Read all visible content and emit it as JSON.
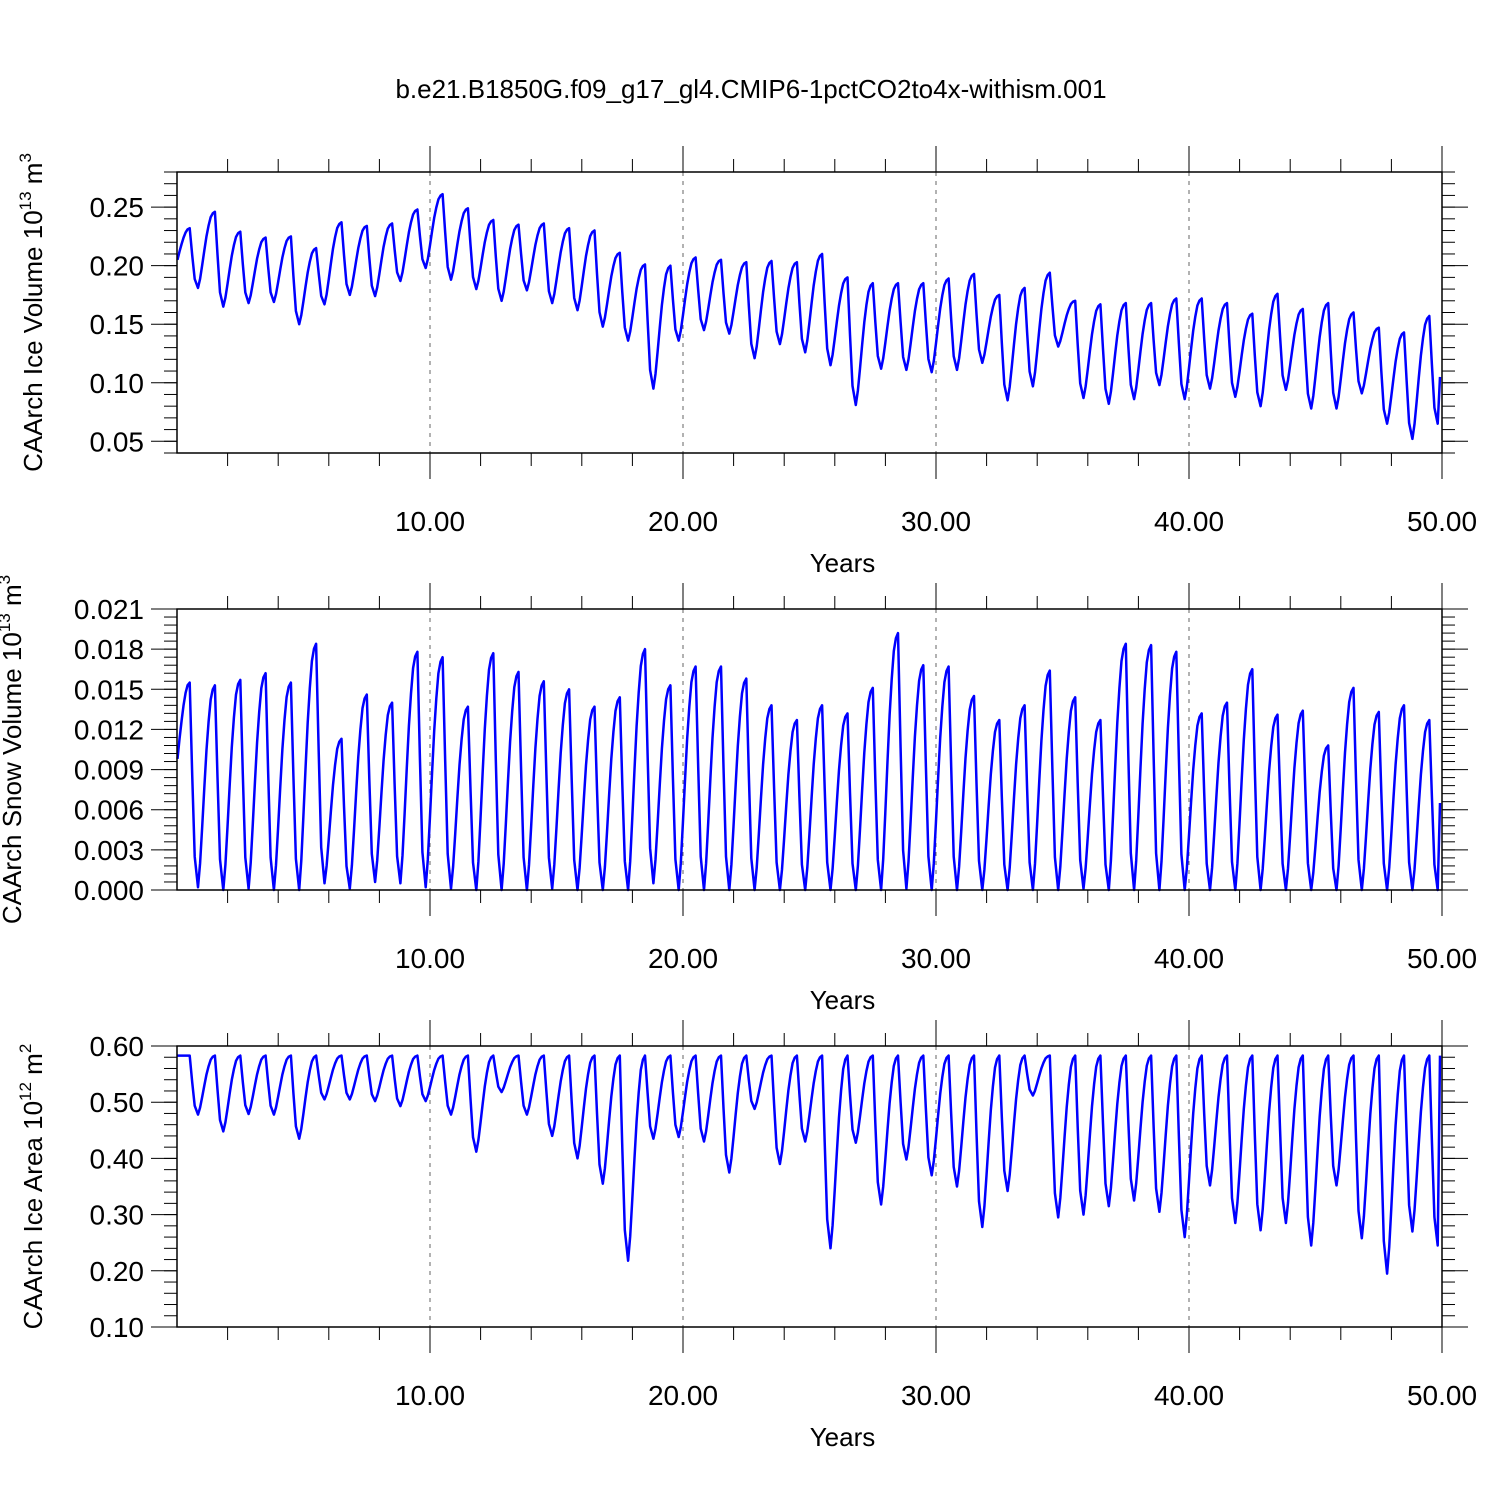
{
  "title": "b.e21.B1850G.f09_g17_gl4.CMIP6-1pctCO2to4x-withism.001",
  "colors": {
    "line": "#0000ff",
    "axis": "#000000",
    "grid": "#666666"
  },
  "chart_data": [
    {
      "type": "line",
      "title": "b.e21.B1850G.f09_g17_gl4.CMIP6-1pctCO2to4x-withism.001",
      "xlabel": "Years",
      "ylabel": "CAArch Ice Volume 10",
      "ylabel_exp": "13",
      "ylabel_unit": " m",
      "ylabel_unit_exp": "3",
      "xlim": [
        0,
        50
      ],
      "ylim": [
        0.04,
        0.28
      ],
      "x_ticks": [
        10,
        20,
        30,
        40,
        50
      ],
      "x_tick_labels": [
        "10.00",
        "20.00",
        "30.00",
        "40.00",
        "50.00"
      ],
      "y_ticks": [
        0.05,
        0.1,
        0.15,
        0.2,
        0.25
      ],
      "y_tick_labels": [
        "0.05",
        "0.10",
        "0.15",
        "0.20",
        "0.25"
      ],
      "grid": "vertical dashed at major x ticks",
      "series": [
        {
          "color": "#0000ff",
          "annual_max": [
            0.232,
            0.246,
            0.229,
            0.224,
            0.225,
            0.215,
            0.237,
            0.234,
            0.236,
            0.248,
            0.261,
            0.249,
            0.239,
            0.235,
            0.236,
            0.232,
            0.23,
            0.211,
            0.201,
            0.2,
            0.207,
            0.205,
            0.203,
            0.204,
            0.203,
            0.21,
            0.19,
            0.185,
            0.185,
            0.185,
            0.189,
            0.193,
            0.175,
            0.181,
            0.194,
            0.17,
            0.167,
            0.168,
            0.168,
            0.172,
            0.172,
            0.168,
            0.159,
            0.176,
            0.163,
            0.168,
            0.16,
            0.147,
            0.143,
            0.157
          ],
          "annual_min": [
            0.181,
            0.165,
            0.168,
            0.169,
            0.15,
            0.167,
            0.175,
            0.174,
            0.187,
            0.198,
            0.188,
            0.18,
            0.17,
            0.179,
            0.168,
            0.162,
            0.148,
            0.136,
            0.095,
            0.136,
            0.145,
            0.142,
            0.121,
            0.133,
            0.126,
            0.115,
            0.081,
            0.112,
            0.111,
            0.109,
            0.111,
            0.117,
            0.085,
            0.097,
            0.131,
            0.087,
            0.082,
            0.086,
            0.098,
            0.086,
            0.095,
            0.088,
            0.08,
            0.094,
            0.078,
            0.078,
            0.091,
            0.065,
            0.052,
            0.065
          ],
          "start": 0.205,
          "end": 0.105
        }
      ]
    },
    {
      "type": "line",
      "xlabel": "Years",
      "ylabel": "CAArch Snow Volume 10",
      "ylabel_exp": "13",
      "ylabel_unit": " m",
      "ylabel_unit_exp": "3",
      "xlim": [
        0,
        50
      ],
      "ylim": [
        0.0,
        0.021
      ],
      "x_ticks": [
        10,
        20,
        30,
        40,
        50
      ],
      "x_tick_labels": [
        "10.00",
        "20.00",
        "30.00",
        "40.00",
        "50.00"
      ],
      "y_ticks": [
        0.0,
        0.003,
        0.006,
        0.009,
        0.012,
        0.015,
        0.018,
        0.021
      ],
      "y_tick_labels": [
        "0.000",
        "0.003",
        "0.006",
        "0.009",
        "0.012",
        "0.015",
        "0.018",
        "0.021"
      ],
      "grid": "vertical dashed at major x ticks",
      "series": [
        {
          "color": "#0000ff",
          "annual_max": [
            0.0155,
            0.0153,
            0.0157,
            0.0162,
            0.0155,
            0.0184,
            0.0113,
            0.0146,
            0.014,
            0.0178,
            0.0174,
            0.0137,
            0.0177,
            0.0163,
            0.0156,
            0.015,
            0.0137,
            0.0144,
            0.018,
            0.0153,
            0.0167,
            0.0167,
            0.0158,
            0.0138,
            0.0127,
            0.0138,
            0.0132,
            0.0151,
            0.0192,
            0.0168,
            0.0167,
            0.0145,
            0.0127,
            0.0138,
            0.0164,
            0.0144,
            0.0127,
            0.0184,
            0.0183,
            0.0178,
            0.0132,
            0.014,
            0.0165,
            0.0131,
            0.0134,
            0.0108,
            0.0151,
            0.0133,
            0.0138,
            0.0127
          ],
          "annual_min": [
            0.0002,
            0.0,
            0.0001,
            0.0,
            0.0,
            0.0005,
            0.0001,
            0.0006,
            0.0005,
            0.0002,
            0.0001,
            0.0,
            0.0,
            0.0,
            0.0001,
            0.0,
            0.0,
            0.0,
            0.0005,
            0.0,
            0.0,
            0.0,
            0.0,
            0.0,
            0.0,
            0.0,
            0.0,
            0.0,
            0.0001,
            0.0,
            0.0,
            0.0,
            0.0,
            0.0,
            0.0,
            0.0001,
            0.0,
            0.0,
            0.0,
            0.0,
            0.0,
            0.0,
            0.0,
            0.0,
            0.0,
            0.0,
            0.0,
            0.0,
            0.0,
            0.0
          ],
          "start": 0.0098,
          "end": 0.0065
        }
      ]
    },
    {
      "type": "line",
      "xlabel": "Years",
      "ylabel": "CAArch Ice Area 10",
      "ylabel_exp": "12",
      "ylabel_unit": " m",
      "ylabel_unit_exp": "2",
      "xlim": [
        0,
        50
      ],
      "ylim": [
        0.1,
        0.6
      ],
      "x_ticks": [
        10,
        20,
        30,
        40,
        50
      ],
      "x_tick_labels": [
        "10.00",
        "20.00",
        "30.00",
        "40.00",
        "50.00"
      ],
      "y_ticks": [
        0.1,
        0.2,
        0.3,
        0.4,
        0.5,
        0.6
      ],
      "y_tick_labels": [
        "0.10",
        "0.20",
        "0.30",
        "0.40",
        "0.50",
        "0.60"
      ],
      "grid": "vertical dashed at major x ticks",
      "series": [
        {
          "color": "#0000ff",
          "annual_max": [
            0.583,
            0.583,
            0.583,
            0.583,
            0.583,
            0.583,
            0.583,
            0.583,
            0.583,
            0.583,
            0.583,
            0.583,
            0.583,
            0.583,
            0.583,
            0.583,
            0.583,
            0.583,
            0.583,
            0.583,
            0.583,
            0.583,
            0.583,
            0.583,
            0.583,
            0.583,
            0.583,
            0.583,
            0.583,
            0.583,
            0.583,
            0.583,
            0.583,
            0.583,
            0.583,
            0.583,
            0.583,
            0.583,
            0.583,
            0.583,
            0.583,
            0.583,
            0.583,
            0.583,
            0.583,
            0.583,
            0.583,
            0.583,
            0.583,
            0.583
          ],
          "annual_min": [
            0.478,
            0.448,
            0.479,
            0.478,
            0.435,
            0.505,
            0.505,
            0.502,
            0.493,
            0.502,
            0.478,
            0.412,
            0.518,
            0.478,
            0.44,
            0.4,
            0.355,
            0.218,
            0.435,
            0.438,
            0.43,
            0.375,
            0.488,
            0.39,
            0.43,
            0.24,
            0.428,
            0.318,
            0.398,
            0.37,
            0.35,
            0.278,
            0.342,
            0.512,
            0.295,
            0.3,
            0.315,
            0.325,
            0.305,
            0.26,
            0.352,
            0.285,
            0.272,
            0.285,
            0.245,
            0.352,
            0.258,
            0.195,
            0.27,
            0.245
          ],
          "start": 0.583,
          "end": 0.583
        }
      ]
    }
  ]
}
